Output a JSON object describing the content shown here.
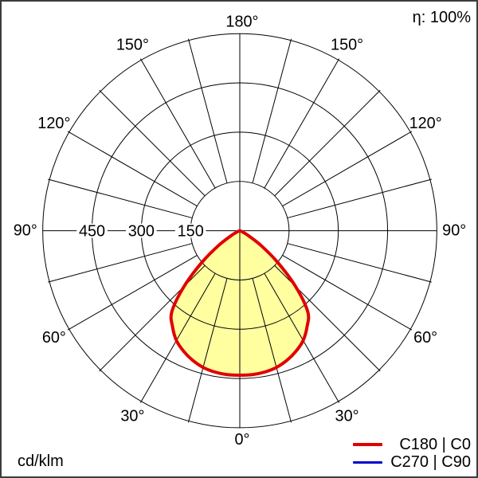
{
  "header": {
    "efficiency": "η: 100%"
  },
  "footer": {
    "unit": "cd/klm"
  },
  "legend": {
    "items": [
      {
        "label": "C180 | C0",
        "color": "#e00000"
      },
      {
        "label": "C270 | C90",
        "color": "#0000cc"
      }
    ]
  },
  "chart_data": {
    "type": "polar",
    "unit": "cd/klm",
    "efficiency_label": "η: 100%",
    "grid_color": "#000000",
    "fill_color": "#ffffa0",
    "angle_labels": [
      "0°",
      "30°",
      "60°",
      "90°",
      "120°",
      "150°",
      "180°"
    ],
    "angle_grid_step_deg": 15,
    "radial_ticks": [
      150,
      300,
      450
    ],
    "radial_max": 600,
    "legend_position": "bottom-right",
    "series": [
      {
        "name": "C180 | C0",
        "color": "#e00000",
        "symmetric": true,
        "gamma_deg": [
          0,
          5,
          10,
          15,
          20,
          25,
          30,
          35,
          40,
          45,
          50,
          55,
          60,
          65,
          70,
          75,
          80,
          85,
          90
        ],
        "values_cd_klm": [
          440,
          440,
          437,
          431,
          420,
          405,
          386,
          357,
          322,
          240,
          152,
          80,
          30,
          10,
          3,
          1,
          0,
          0,
          0
        ]
      },
      {
        "name": "C270 | C90",
        "color": "#0000cc",
        "symmetric": true,
        "gamma_deg": [
          0,
          5,
          10,
          15,
          20,
          25,
          30,
          35,
          40,
          45,
          50,
          55,
          60,
          65,
          70,
          75,
          80,
          85,
          90
        ],
        "values_cd_klm": [
          440,
          440,
          437,
          431,
          420,
          405,
          386,
          357,
          322,
          240,
          152,
          80,
          30,
          10,
          3,
          1,
          0,
          0,
          0
        ]
      }
    ]
  }
}
